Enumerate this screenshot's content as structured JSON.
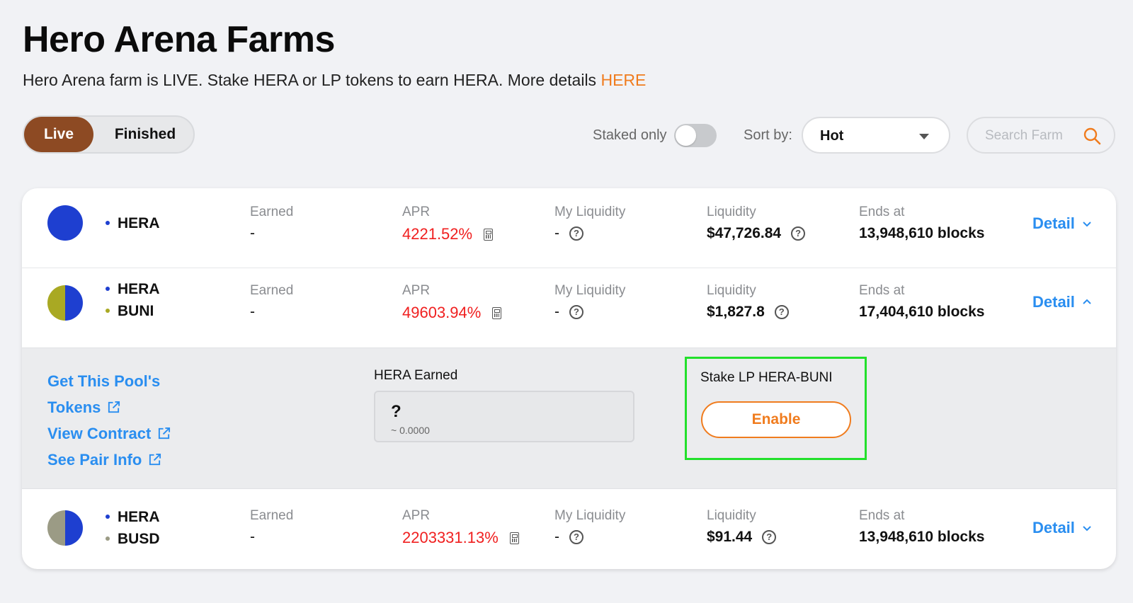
{
  "header": {
    "title": "Hero Arena Farms",
    "subtitle": "Hero Arena farm is LIVE. Stake HERA or LP tokens to earn HERA. More details ",
    "subtitle_link": "HERE"
  },
  "controls": {
    "tabs": [
      "Live",
      "Finished"
    ],
    "active_tab": "Live",
    "staked_only_label": "Staked only",
    "staked_only_on": false,
    "sort_label": "Sort by:",
    "sort_value": "Hot",
    "search_placeholder": "Search Farm"
  },
  "columns": {
    "earned": "Earned",
    "apr": "APR",
    "my_liquidity": "My Liquidity",
    "liquidity": "Liquidity",
    "ends_at": "Ends at",
    "detail": "Detail"
  },
  "farms": [
    {
      "tokens": [
        "HERA"
      ],
      "earned": "-",
      "apr": "4221.52%",
      "my_liquidity": "-",
      "liquidity": "$47,726.84",
      "ends_at": "13,948,610 blocks",
      "expanded": false
    },
    {
      "tokens": [
        "HERA",
        "BUNI"
      ],
      "earned": "-",
      "apr": "49603.94%",
      "my_liquidity": "-",
      "liquidity": "$1,827.8",
      "ends_at": "17,404,610 blocks",
      "expanded": true
    },
    {
      "tokens": [
        "HERA",
        "BUSD"
      ],
      "earned": "-",
      "apr": "2203331.13%",
      "my_liquidity": "-",
      "liquidity": "$91.44",
      "ends_at": "13,948,610 blocks",
      "expanded": false
    }
  ],
  "expanded_panel": {
    "links": [
      "Get This Pool's",
      "Tokens",
      "View Contract",
      "See Pair Info"
    ],
    "earned_label": "HERA Earned",
    "earned_value": "?",
    "earned_usd": "~ 0.0000",
    "stake_label": "Stake LP HERA-BUNI",
    "enable_button": "Enable"
  },
  "colors": {
    "accent_brown": "#8d4a23",
    "accent_orange": "#f07c1e",
    "link_blue": "#2a8ef0",
    "apr_red": "#f01f1f",
    "hera_blue": "#1e3fd0",
    "buni_olive": "#a9a923",
    "busd_gray": "#9b9b85",
    "highlight_green": "#22e02b"
  },
  "icons": [
    "search-icon",
    "calculator-icon",
    "question-icon",
    "chevron-down-icon",
    "chevron-up-icon",
    "external-link-icon"
  ]
}
